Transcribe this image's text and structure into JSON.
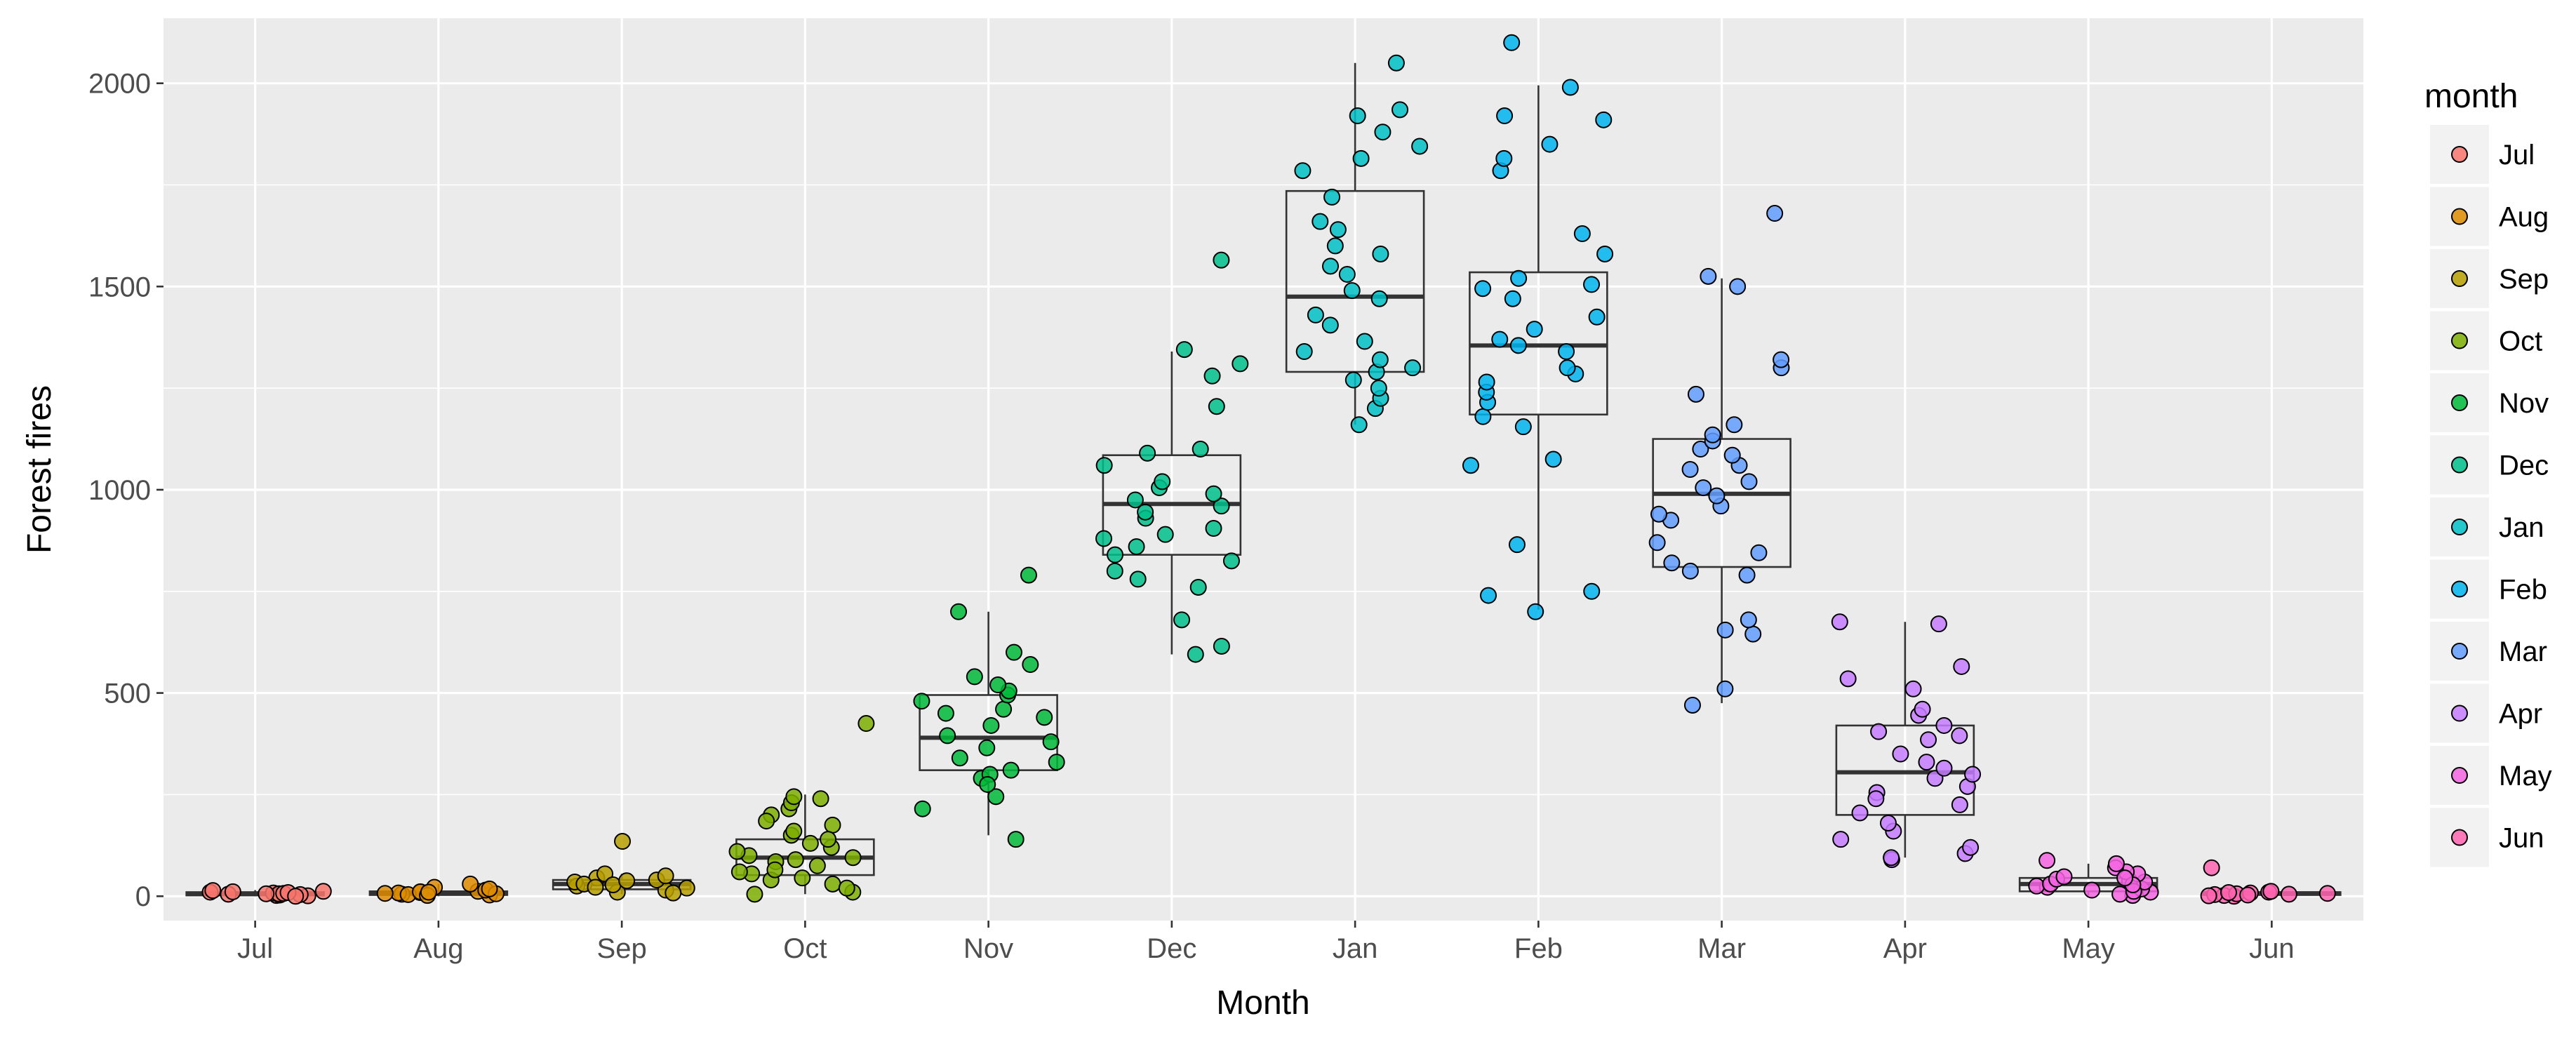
{
  "chart_data": {
    "type": "boxplot-jitter",
    "xlabel": "Month",
    "ylabel": "Forest fires",
    "ylim": [
      -60,
      2160
    ],
    "yticks": [
      0,
      500,
      1000,
      1500,
      2000
    ],
    "ytick_labels": [
      "0",
      "500",
      "1000",
      "1500",
      "2000"
    ],
    "grid": true,
    "legend": {
      "title": "month",
      "position": "right"
    },
    "categories": [
      "Jul",
      "Aug",
      "Sep",
      "Oct",
      "Nov",
      "Dec",
      "Jan",
      "Feb",
      "Mar",
      "Apr",
      "May",
      "Jun"
    ],
    "colors": [
      "#F8766D",
      "#DE8C00",
      "#B79F00",
      "#7CAE00",
      "#00BA38",
      "#00C08B",
      "#00BFC4",
      "#00B4F0",
      "#619CFF",
      "#C77CFF",
      "#F564E3",
      "#FF64B0"
    ],
    "boxes": [
      {
        "month": "Jul",
        "min": 0,
        "q1": 2,
        "median": 6,
        "q3": 10,
        "max": 15
      },
      {
        "month": "Aug",
        "min": 0,
        "q1": 3,
        "median": 7,
        "q3": 12,
        "max": 30
      },
      {
        "month": "Sep",
        "min": 5,
        "q1": 17,
        "median": 30,
        "q3": 40,
        "max": 55
      },
      {
        "month": "Oct",
        "min": 5,
        "q1": 52,
        "median": 95,
        "q3": 140,
        "max": 250
      },
      {
        "month": "Nov",
        "min": 150,
        "q1": 310,
        "median": 390,
        "q3": 495,
        "max": 700
      },
      {
        "month": "Dec",
        "min": 595,
        "q1": 840,
        "median": 965,
        "q3": 1085,
        "max": 1340
      },
      {
        "month": "Jan",
        "min": 1160,
        "q1": 1290,
        "median": 1475,
        "q3": 1735,
        "max": 2050
      },
      {
        "month": "Feb",
        "min": 705,
        "q1": 1185,
        "median": 1355,
        "q3": 1535,
        "max": 1995
      },
      {
        "month": "Mar",
        "min": 475,
        "q1": 810,
        "median": 990,
        "q3": 1125,
        "max": 1520
      },
      {
        "month": "Apr",
        "min": 95,
        "q1": 200,
        "median": 305,
        "q3": 420,
        "max": 675
      },
      {
        "month": "May",
        "min": 2,
        "q1": 12,
        "median": 30,
        "q3": 45,
        "max": 80
      },
      {
        "month": "Jun",
        "min": 0,
        "q1": 3,
        "median": 7,
        "q3": 10,
        "max": 15
      }
    ],
    "points": [
      {
        "month": "Jul",
        "y": [
          2,
          5,
          8,
          12,
          3,
          6,
          10,
          1,
          7,
          4,
          9,
          11,
          0,
          14,
          6
        ]
      },
      {
        "month": "Aug",
        "y": [
          5,
          8,
          12,
          3,
          15,
          7,
          22,
          30,
          9,
          4,
          11,
          6,
          18,
          2,
          10
        ]
      },
      {
        "month": "Sep",
        "y": [
          15,
          25,
          35,
          45,
          55,
          135,
          20,
          10,
          40,
          30,
          28,
          8,
          50,
          22,
          38
        ]
      },
      {
        "month": "Oct",
        "y": [
          10,
          30,
          55,
          75,
          100,
          120,
          150,
          175,
          200,
          215,
          230,
          245,
          425,
          90,
          60,
          40,
          5,
          140,
          110,
          85,
          65,
          160,
          185,
          20,
          45,
          130,
          95,
          240
        ]
      },
      {
        "month": "Nov",
        "y": [
          140,
          215,
          245,
          290,
          300,
          310,
          340,
          365,
          380,
          395,
          420,
          440,
          460,
          480,
          495,
          505,
          540,
          570,
          600,
          700,
          790,
          330,
          275,
          450,
          520
        ]
      },
      {
        "month": "Dec",
        "y": [
          595,
          615,
          680,
          760,
          800,
          825,
          840,
          860,
          890,
          905,
          930,
          960,
          975,
          990,
          1005,
          1020,
          1060,
          1090,
          1100,
          1205,
          1280,
          1310,
          1345,
          1565,
          945,
          880,
          780
        ]
      },
      {
        "month": "Jan",
        "y": [
          1160,
          1200,
          1225,
          1250,
          1270,
          1290,
          1300,
          1320,
          1340,
          1365,
          1430,
          1470,
          1530,
          1550,
          1580,
          1600,
          1640,
          1660,
          1720,
          1785,
          1815,
          1845,
          1880,
          1920,
          1935,
          2050,
          1405,
          1490
        ]
      },
      {
        "month": "Feb",
        "y": [
          700,
          740,
          750,
          865,
          1060,
          1075,
          1155,
          1180,
          1215,
          1240,
          1265,
          1285,
          1300,
          1340,
          1355,
          1370,
          1395,
          1425,
          1470,
          1495,
          1505,
          1520,
          1580,
          1785,
          1815,
          1850,
          1910,
          1920,
          1990,
          2100,
          1630
        ]
      },
      {
        "month": "Mar",
        "y": [
          470,
          510,
          645,
          655,
          680,
          790,
          800,
          820,
          845,
          870,
          925,
          960,
          985,
          1005,
          1020,
          1060,
          1085,
          1100,
          1120,
          1135,
          1160,
          1235,
          1300,
          1320,
          1500,
          1525,
          1680,
          1050,
          940
        ]
      },
      {
        "month": "Apr",
        "y": [
          90,
          95,
          105,
          120,
          140,
          160,
          180,
          205,
          225,
          255,
          270,
          290,
          300,
          315,
          350,
          385,
          395,
          405,
          420,
          445,
          460,
          510,
          535,
          565,
          670,
          675,
          330,
          240
        ]
      },
      {
        "month": "May",
        "y": [
          2,
          5,
          10,
          15,
          18,
          22,
          25,
          30,
          35,
          38,
          42,
          48,
          55,
          60,
          70,
          80,
          88,
          12,
          28,
          45
        ]
      },
      {
        "month": "Jun",
        "y": [
          0,
          2,
          4,
          6,
          8,
          10,
          12,
          70,
          3,
          5,
          7,
          9,
          1
        ]
      }
    ]
  }
}
